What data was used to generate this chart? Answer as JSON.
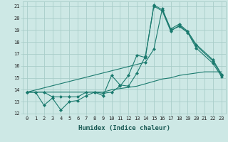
{
  "title": "",
  "xlabel": "Humidex (Indice chaleur)",
  "ylabel": "",
  "xlim": [
    -0.5,
    23.5
  ],
  "ylim": [
    12,
    21.4
  ],
  "bg_color": "#cde8e5",
  "grid_color": "#a8cdc9",
  "line_color": "#1a7a6e",
  "line1_x": [
    0,
    1,
    2,
    3,
    4,
    5,
    6,
    7,
    8,
    9,
    10,
    11,
    12,
    13,
    14,
    15,
    16,
    17,
    18,
    19,
    20,
    21,
    22,
    23
  ],
  "line1_y": [
    13.8,
    13.8,
    13.8,
    13.8,
    13.8,
    13.8,
    13.8,
    13.8,
    13.8,
    13.8,
    14.0,
    14.1,
    14.2,
    14.3,
    14.5,
    14.7,
    14.9,
    15.0,
    15.2,
    15.3,
    15.4,
    15.5,
    15.5,
    15.5
  ],
  "line2_x": [
    0,
    1,
    2,
    3,
    4,
    5,
    6,
    7,
    8,
    9,
    10,
    11,
    12,
    13,
    14,
    15,
    16,
    17,
    18,
    19,
    20,
    22,
    23
  ],
  "line2_y": [
    13.8,
    13.8,
    12.7,
    13.3,
    12.3,
    13.0,
    13.1,
    13.5,
    13.8,
    13.7,
    13.8,
    14.3,
    15.2,
    16.9,
    16.7,
    21.1,
    20.7,
    19.1,
    19.5,
    18.9,
    17.8,
    16.5,
    15.3
  ],
  "line3_x": [
    0,
    1,
    2,
    3,
    4,
    5,
    6,
    7,
    8,
    9,
    10,
    11,
    12,
    13,
    14,
    15,
    16,
    17,
    18,
    19,
    20,
    22,
    23
  ],
  "line3_y": [
    13.8,
    13.8,
    13.8,
    13.4,
    13.4,
    13.4,
    13.4,
    13.8,
    13.8,
    13.5,
    15.2,
    14.4,
    14.3,
    15.4,
    16.8,
    21.0,
    20.6,
    18.9,
    19.4,
    18.8,
    17.5,
    16.2,
    15.1
  ],
  "line4_x": [
    0,
    14,
    15,
    16,
    17,
    18,
    19,
    20,
    22,
    23
  ],
  "line4_y": [
    13.8,
    16.3,
    17.4,
    20.8,
    19.0,
    19.3,
    18.8,
    17.7,
    16.4,
    15.2
  ],
  "xticks": [
    0,
    1,
    2,
    3,
    4,
    5,
    6,
    7,
    8,
    9,
    10,
    11,
    12,
    13,
    14,
    15,
    16,
    17,
    18,
    19,
    20,
    21,
    22,
    23
  ],
  "yticks": [
    12,
    13,
    14,
    15,
    16,
    17,
    18,
    19,
    20,
    21
  ],
  "tick_fontsize": 5,
  "xlabel_fontsize": 6.5
}
